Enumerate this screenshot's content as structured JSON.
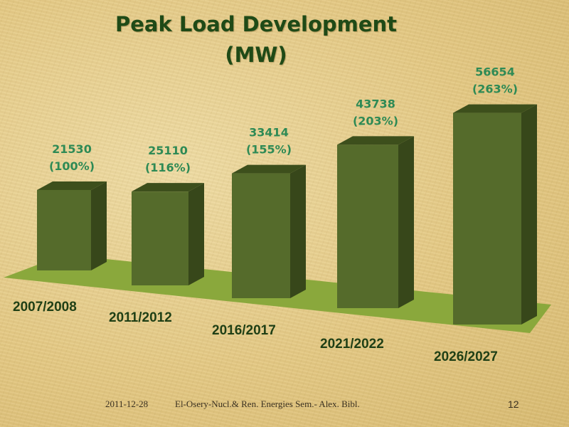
{
  "slide": {
    "title_line1": "Peak Load Development",
    "title_line2": "(MW)",
    "footer_date": "2011-12-28",
    "footer_text": "El-Osery-Nucl.& Ren. Energies Sem.- Alex. Bibl.",
    "slide_number": "12"
  },
  "colors": {
    "bar_front": "#556b2b",
    "bar_top": "#3d4f1c",
    "bar_side": "#37471a",
    "floor": "#8aa83c",
    "value_label": "#2e8a55",
    "category_label": "#1f3f15",
    "title": "#1f4a17"
  },
  "chart_data": {
    "type": "bar",
    "style": "3d-column",
    "title": "Peak Load Development (MW)",
    "categories": [
      "2007/2008",
      "2011/2012",
      "2016/2017",
      "2021/2022",
      "2026/2027"
    ],
    "values": [
      21530,
      25110,
      33414,
      43738,
      56654
    ],
    "percent_labels": [
      "(100%)",
      "(116%)",
      "(155%)",
      "(203%)",
      "(263%)"
    ],
    "value_labels": [
      "21530",
      "25110",
      "33414",
      "43738",
      "56654"
    ],
    "grid": false,
    "legend": "none"
  }
}
